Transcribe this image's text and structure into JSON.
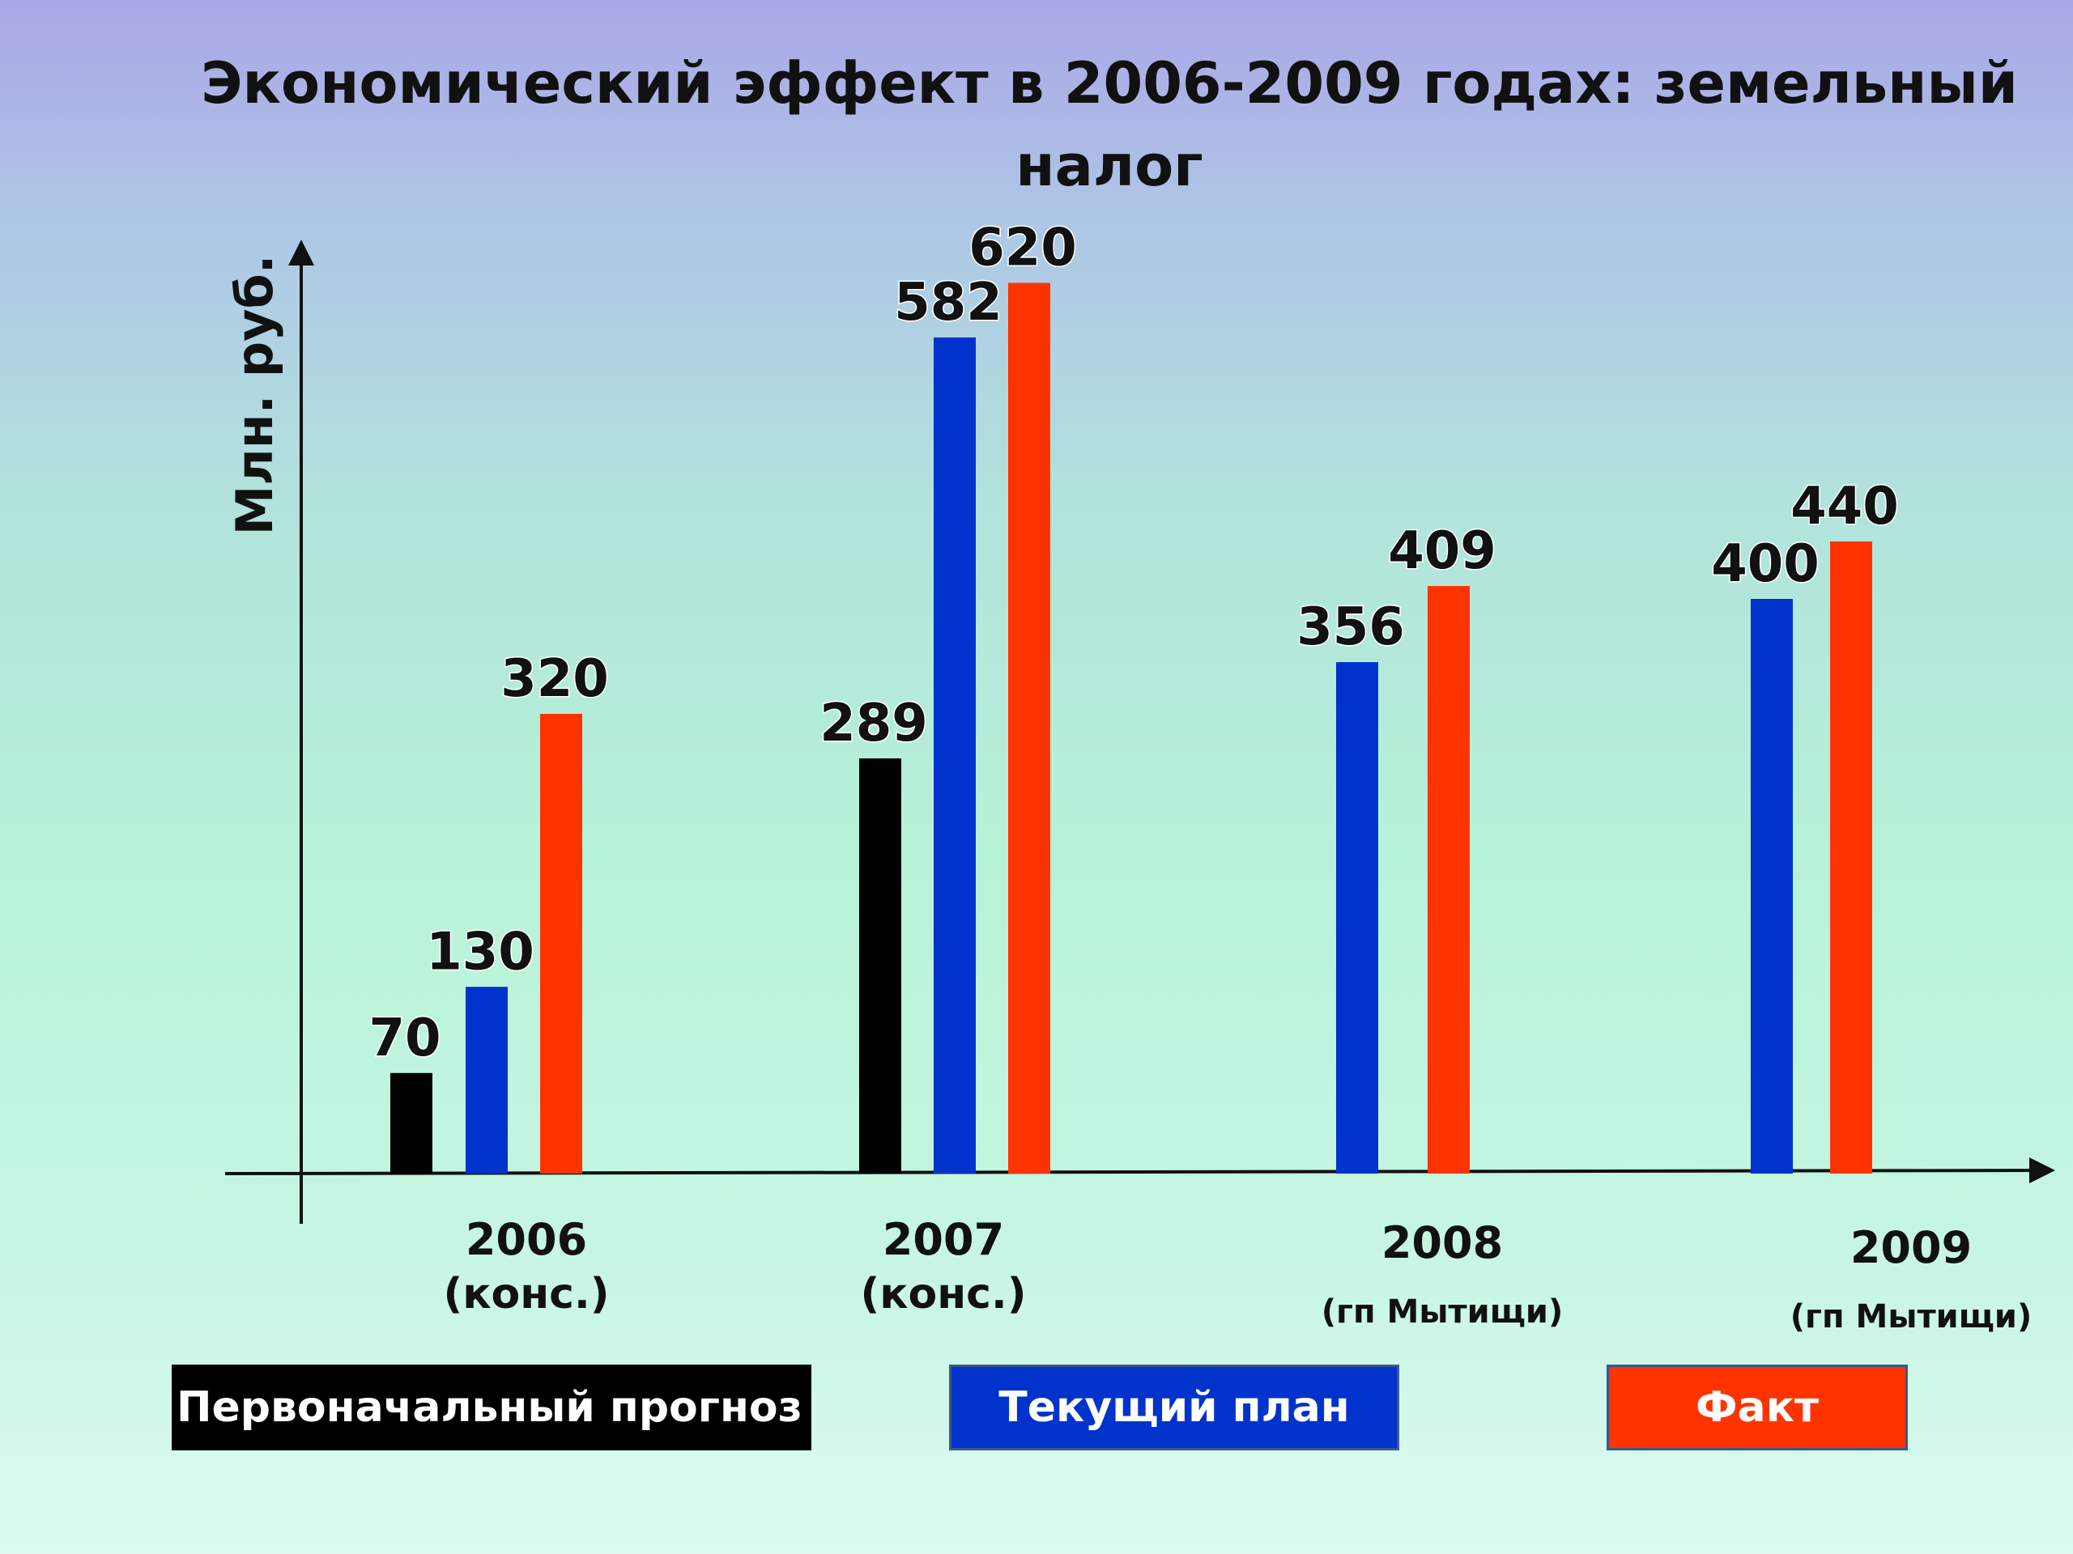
{
  "title": "Экономический эффект в 2006-2009 годах: земельный налог",
  "chart_data": {
    "type": "bar",
    "title": "Экономический эффект в 2006-2009 годах: земельный налог",
    "ylabel": "Млн. руб.",
    "xlabel": "",
    "ylim": [
      0,
      660
    ],
    "grid": false,
    "legend_position": "bottom",
    "categories": [
      {
        "year": "2006",
        "note": "(конс.)"
      },
      {
        "year": "2007",
        "note": "(конс.)"
      },
      {
        "year": "2008",
        "note": "(гп Мытищи)"
      },
      {
        "year": "2009",
        "note": "(гп Мытищи)"
      }
    ],
    "series": [
      {
        "name": "Первоначальный прогноз",
        "color": "#000000",
        "values": [
          70,
          289,
          null,
          null
        ]
      },
      {
        "name": "Текущий план",
        "color": "#0033cc",
        "values": [
          130,
          582,
          356,
          400
        ]
      },
      {
        "name": "Факт",
        "color": "#ff3300",
        "values": [
          320,
          620,
          409,
          440
        ]
      }
    ]
  }
}
